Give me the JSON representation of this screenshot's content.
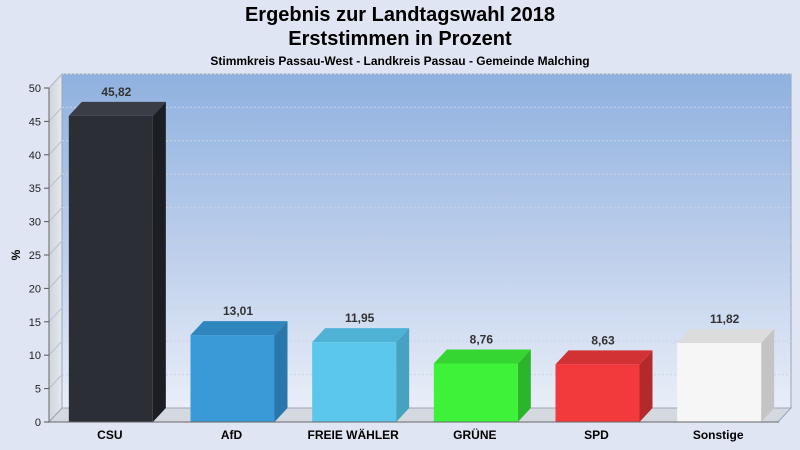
{
  "chart_data": {
    "type": "bar",
    "title": "Ergebnis zur Landtagswahl 2018",
    "title_line2": "Erststimmen in Prozent",
    "subtitle": "Stimmkreis Passau-West - Landkreis Passau - Gemeinde Malching",
    "ylabel": "%",
    "xlabel": "",
    "ylim": [
      0,
      50
    ],
    "yticks": [
      0,
      5,
      10,
      15,
      20,
      25,
      30,
      35,
      40,
      45,
      50
    ],
    "grid": true,
    "categories": [
      "CSU",
      "AfD",
      "FREIE WÄHLER",
      "GRÜNE",
      "SPD",
      "Sonstige"
    ],
    "values": [
      45.82,
      13.01,
      11.95,
      8.76,
      8.63,
      11.82
    ],
    "value_labels": [
      "45,82",
      "13,01",
      "11,95",
      "8,76",
      "8,63",
      "11,82"
    ],
    "colors": [
      "#2b2e35",
      "#3a9ad8",
      "#5cc7ec",
      "#3ef23a",
      "#f23a3c",
      "#f6f6f6"
    ],
    "side_colors": [
      "#1c1e23",
      "#2a78ab",
      "#45a2c0",
      "#2cb52a",
      "#b42a2c",
      "#c4c4c4"
    ],
    "top_colors": [
      "#3a3d45",
      "#2f86bd",
      "#4fb2d4",
      "#35d532",
      "#d23234",
      "#dcdcdc"
    ]
  }
}
